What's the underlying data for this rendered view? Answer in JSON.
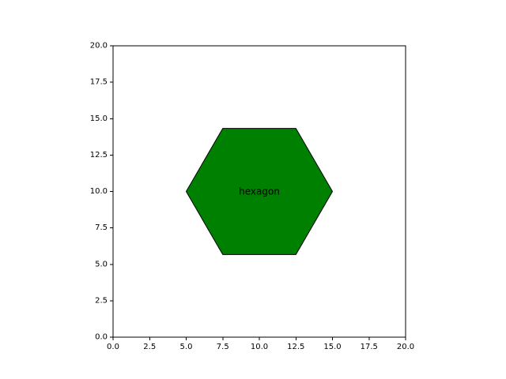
{
  "chart_data": {
    "type": "scatter",
    "title": "",
    "xlabel": "",
    "ylabel": "",
    "xlim": [
      0,
      20
    ],
    "ylim": [
      0,
      20
    ],
    "aspect": "equal",
    "grid": false,
    "xticks": [
      0,
      2.5,
      5,
      7.5,
      10,
      12.5,
      15,
      17.5,
      20
    ],
    "yticks": [
      0,
      2.5,
      5,
      7.5,
      10,
      12.5,
      15,
      17.5,
      20
    ],
    "xtick_labels": [
      "0.0",
      "2.5",
      "5.0",
      "7.5",
      "10.0",
      "12.5",
      "15.0",
      "17.5",
      "20.0"
    ],
    "ytick_labels": [
      "0.0",
      "2.5",
      "5.0",
      "7.5",
      "10.0",
      "12.5",
      "15.0",
      "17.5",
      "20.0"
    ],
    "shapes": [
      {
        "kind": "polygon",
        "center": [
          10,
          10
        ],
        "vertices": [
          [
            15,
            10
          ],
          [
            12.5,
            5.67
          ],
          [
            7.5,
            5.67
          ],
          [
            5,
            10
          ],
          [
            7.5,
            14.33
          ],
          [
            12.5,
            14.33
          ]
        ],
        "fill": "#008000",
        "edge": "#000000"
      }
    ],
    "annotations": [
      {
        "text": "hexagon",
        "x": 10,
        "y": 10
      }
    ]
  }
}
